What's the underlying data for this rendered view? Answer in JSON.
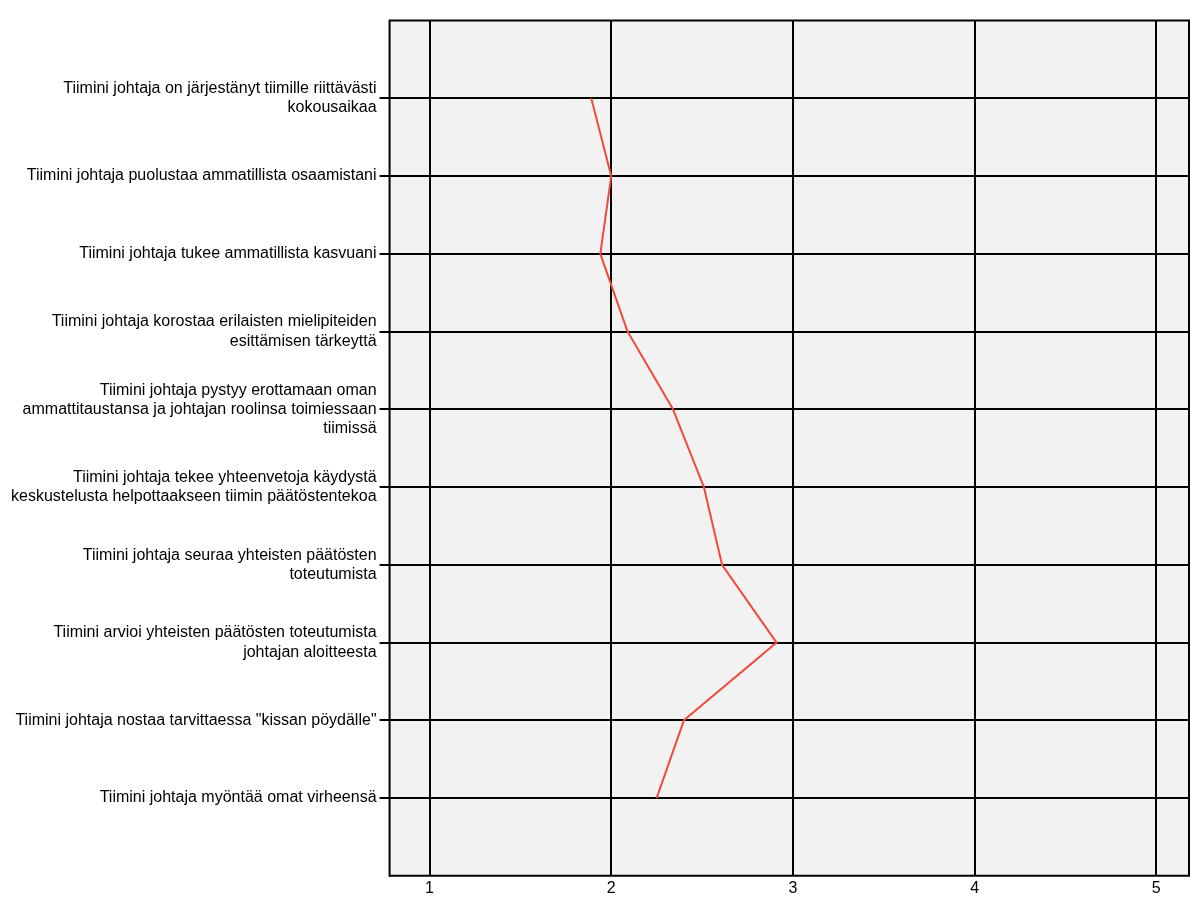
{
  "chart_data": {
    "type": "line",
    "orientation": "horizontal",
    "categories": [
      "Tiimini johtaja on järjestänyt tiimille riittävästi kokousaikaa",
      "Tiimini johtaja puolustaa ammatillista osaamistani",
      "Tiimini johtaja tukee ammatillista kasvuani",
      "Tiimini johtaja korostaa erilaisten mielipiteiden esittämisen tärkeyttä",
      "Tiimini johtaja pystyy erottamaan oman ammattitaustansa ja johtajan roolinsa toimiessaan tiimissä",
      "Tiimini johtaja tekee yhteenvetoja käydystä keskustelusta helpottaakseen tiimin päätöstentekoa",
      "Tiimini johtaja seuraa yhteisten päätösten toteutumista",
      "Tiimini arvioi yhteisten päätösten toteutumista johtajan aloitteesta",
      "Tiimini johtaja nostaa tarvittaessa \"kissan pöydälle\"",
      "Tiimini johtaja myöntää omat virheensä"
    ],
    "values": [
      1.89,
      2.0,
      1.94,
      2.09,
      2.34,
      2.51,
      2.61,
      2.91,
      2.4,
      2.25
    ],
    "color": "#f04a3c",
    "marker": "none",
    "xlim": [
      0.78,
      5.18
    ],
    "xticks": [
      1,
      2,
      3,
      4,
      5
    ],
    "grid": true
  }
}
